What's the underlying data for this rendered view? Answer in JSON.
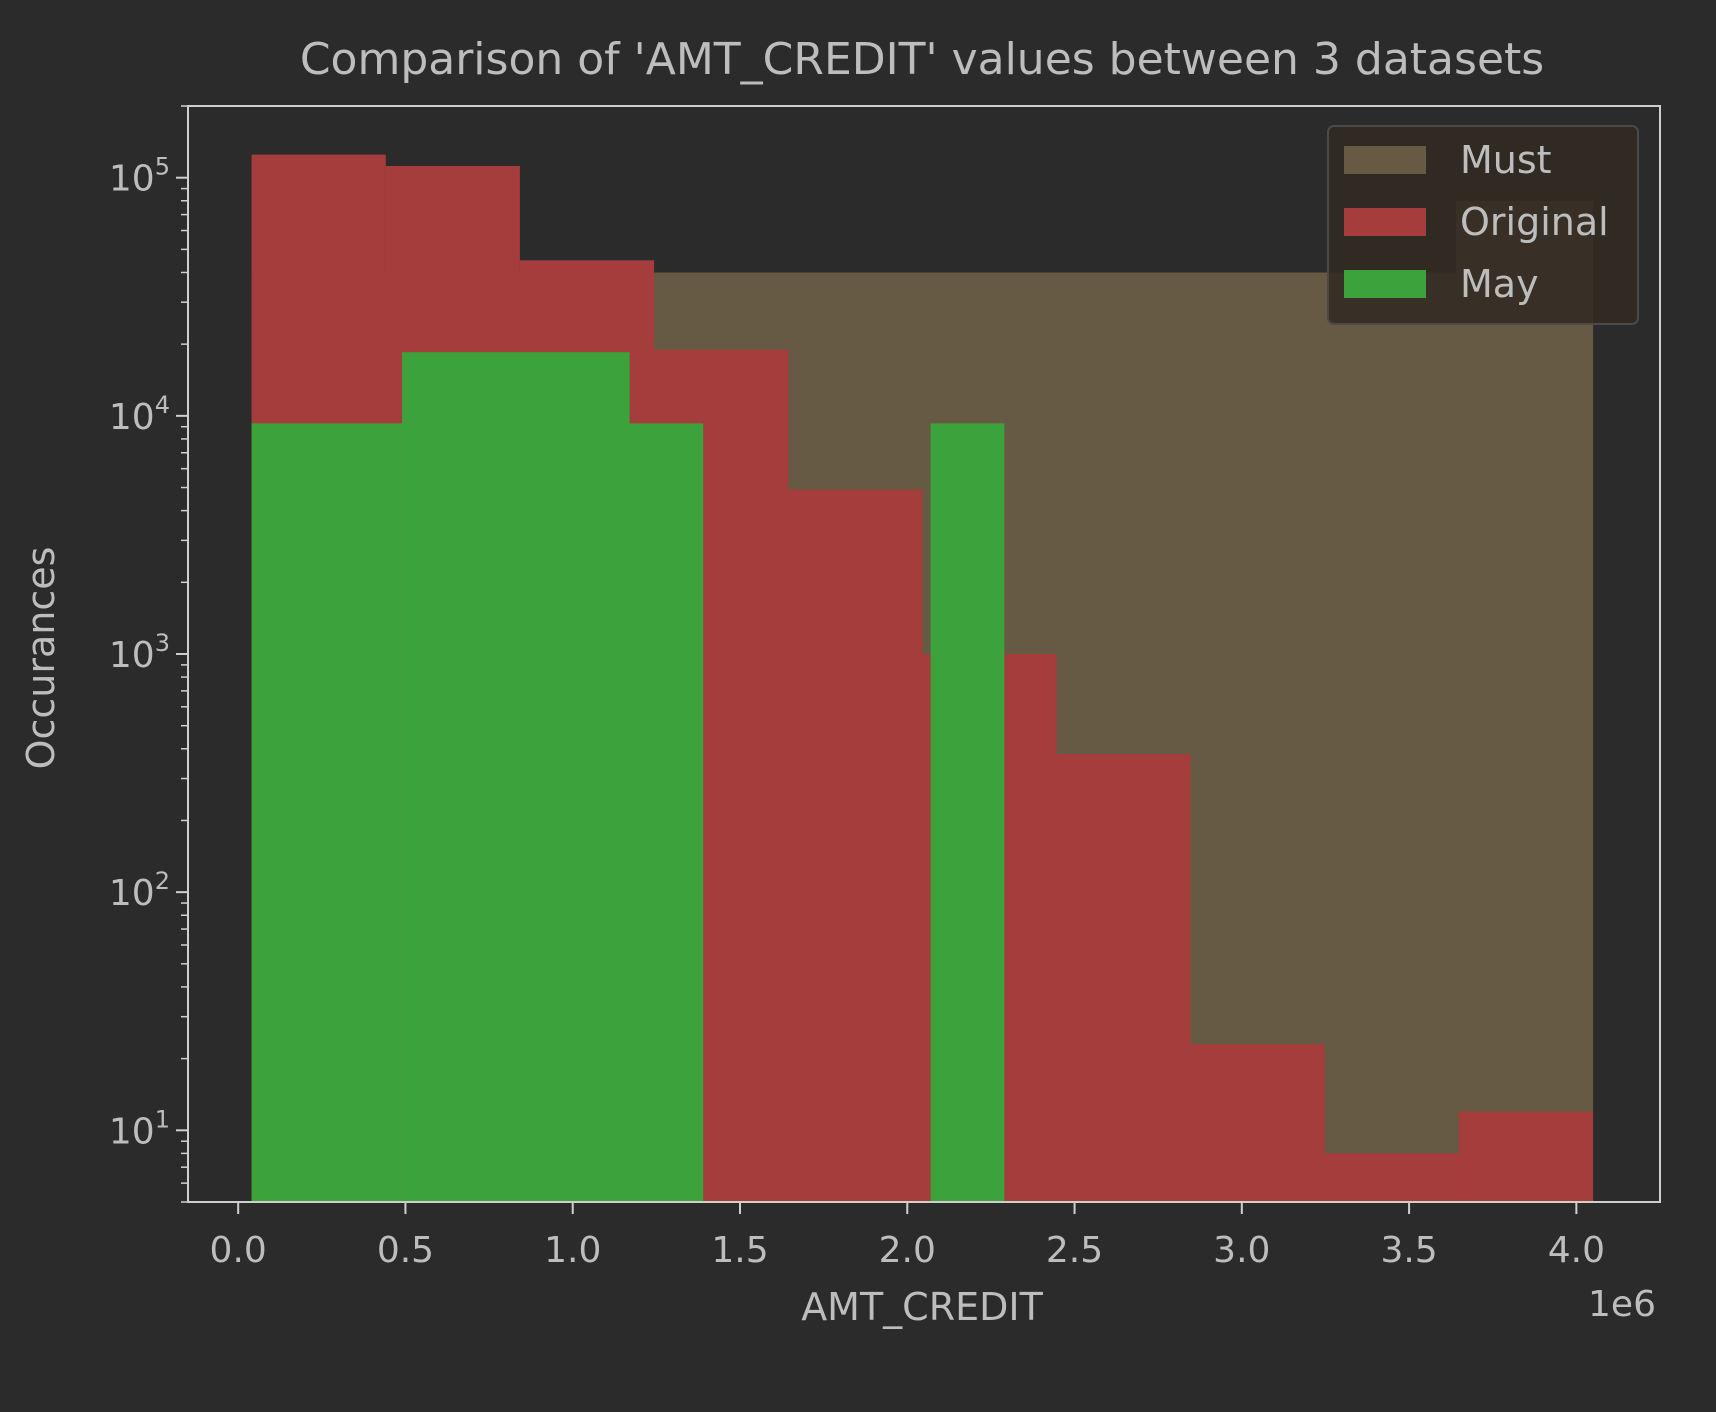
{
  "chart_data": {
    "type": "bar",
    "title": "Comparison of 'AMT_CREDIT' values between 3 datasets",
    "xlabel": "AMT_CREDIT",
    "ylabel": "Occurances",
    "x_offset_label": "1e6",
    "x_scale_factor": 1000000,
    "xlim": [
      -150000,
      4250000
    ],
    "ylim": [
      5,
      200000
    ],
    "y_scale": "log",
    "x_ticks": [
      {
        "value": 0,
        "label": "0.0"
      },
      {
        "value": 500000,
        "label": "0.5"
      },
      {
        "value": 1000000,
        "label": "1.0"
      },
      {
        "value": 1500000,
        "label": "1.5"
      },
      {
        "value": 2000000,
        "label": "2.0"
      },
      {
        "value": 2500000,
        "label": "2.5"
      },
      {
        "value": 3000000,
        "label": "3.0"
      },
      {
        "value": 3500000,
        "label": "3.5"
      },
      {
        "value": 4000000,
        "label": "4.0"
      }
    ],
    "y_ticks": [
      {
        "value": 10,
        "base": "10",
        "exp": "1"
      },
      {
        "value": 100,
        "base": "10",
        "exp": "2"
      },
      {
        "value": 1000,
        "base": "10",
        "exp": "3"
      },
      {
        "value": 10000,
        "base": "10",
        "exp": "4"
      },
      {
        "value": 100000,
        "base": "10",
        "exp": "5"
      }
    ],
    "legend_position": "top-right",
    "grid": false,
    "series": [
      {
        "name": "Must",
        "color": "#675a44",
        "bins": [
          {
            "x0": 40000,
            "x1": 1240000,
            "count": 40000
          },
          {
            "x0": 1240000,
            "x1": 2440000,
            "count": 40000
          },
          {
            "x0": 2440000,
            "x1": 3640000,
            "count": 40000
          },
          {
            "x0": 3640000,
            "x1": 4050000,
            "count": 80000
          }
        ]
      },
      {
        "name": "Original",
        "color": "#a63d3d",
        "bins": [
          {
            "x0": 40000,
            "x1": 441000,
            "count": 125000
          },
          {
            "x0": 441000,
            "x1": 842000,
            "count": 112000
          },
          {
            "x0": 842000,
            "x1": 1243000,
            "count": 45000
          },
          {
            "x0": 1243000,
            "x1": 1644000,
            "count": 19000
          },
          {
            "x0": 1644000,
            "x1": 2045000,
            "count": 4900
          },
          {
            "x0": 2045000,
            "x1": 2446000,
            "count": 1000
          },
          {
            "x0": 2446000,
            "x1": 2847000,
            "count": 380
          },
          {
            "x0": 2847000,
            "x1": 3248000,
            "count": 23
          },
          {
            "x0": 3248000,
            "x1": 3649000,
            "count": 8
          },
          {
            "x0": 3649000,
            "x1": 4050000,
            "count": 12
          }
        ]
      },
      {
        "name": "May",
        "color": "#3ca33c",
        "bins": [
          {
            "x0": 40000,
            "x1": 490000,
            "count": 9300
          },
          {
            "x0": 490000,
            "x1": 1170000,
            "count": 18500
          },
          {
            "x0": 1170000,
            "x1": 1390000,
            "count": 9300
          },
          {
            "x0": 2070000,
            "x1": 2290000,
            "count": 9300
          }
        ]
      }
    ]
  }
}
